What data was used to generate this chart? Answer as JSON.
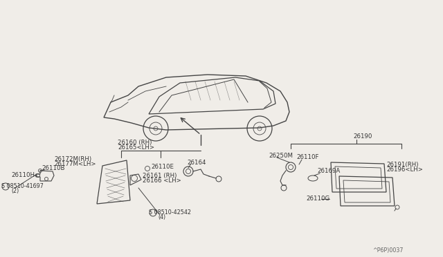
{
  "bg_color": "#f0ede8",
  "line_color": "#444444",
  "text_color": "#333333",
  "ref_code": "^P6P)0037",
  "label_26160": "26160 (RH)",
  "label_26165": "26165<LH>",
  "label_26172": "26172M(RH)",
  "label_26177": "26177M<LH>",
  "label_26110H": "26110H",
  "label_26110B": "26110B",
  "label_screw1a": "S 08510-41697",
  "label_screw1b": "(2)",
  "label_26161": "26161 (RH)",
  "label_26166": "26166 <LH>",
  "label_26110E": "26110E",
  "label_26164": "26164",
  "label_screw2a": "S 08510-42542",
  "label_screw2b": "(4)",
  "label_26190": "26190",
  "label_26250M": "26250M",
  "label_26110F": "26110F",
  "label_26169A": "26169A",
  "label_26191": "26191(RH)",
  "label_26196": "26196<LH>",
  "label_26110G": "26110G"
}
